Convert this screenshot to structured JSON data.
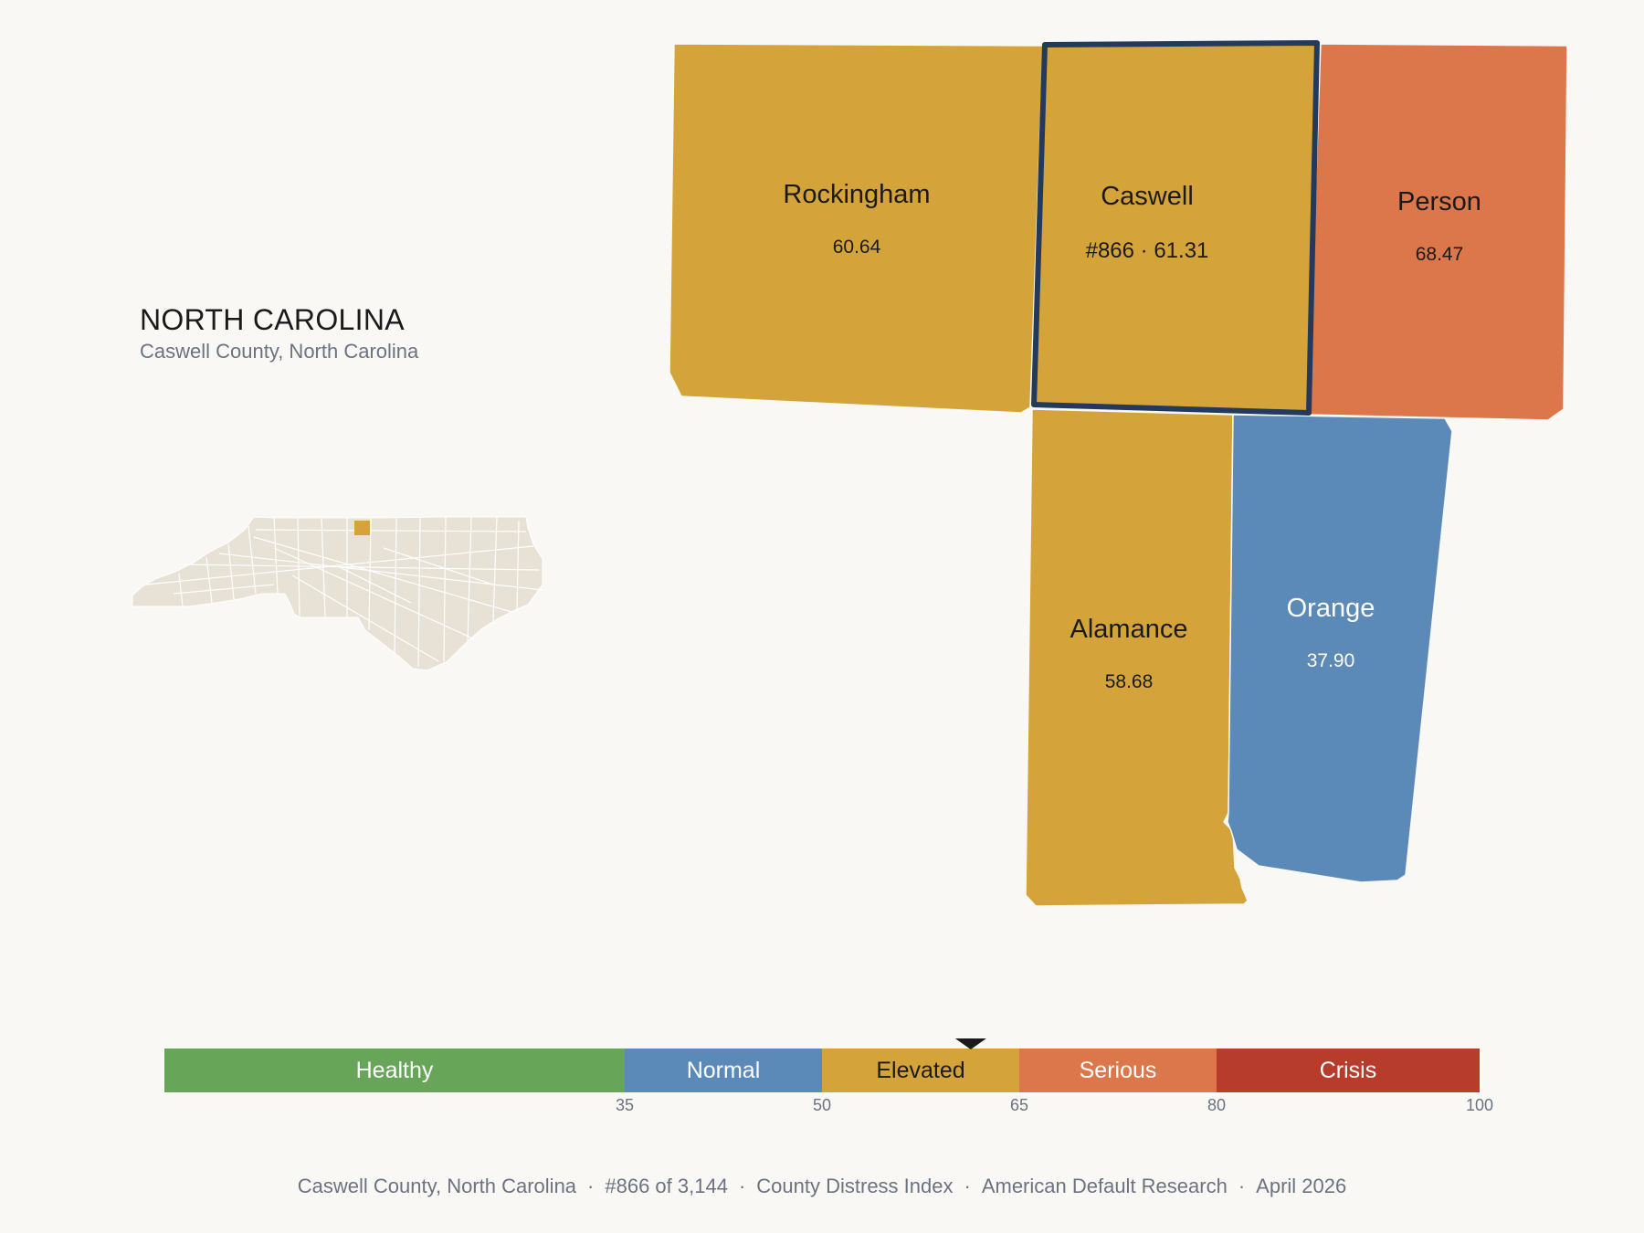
{
  "header": {
    "state": "NORTH CAROLINA",
    "subtitle": "Caswell County, North Carolina"
  },
  "colors": {
    "background": "#f9f8f5",
    "healthy": "#67a659",
    "normal": "#5b89b8",
    "elevated": "#d4a43a",
    "serious": "#db774a",
    "crisis": "#b83c2c",
    "selected_outline": "#243a5c",
    "inset_fill": "#e7e1d6"
  },
  "counties": [
    {
      "id": "rockingham",
      "name": "Rockingham",
      "value": "60.64",
      "category": "elevated",
      "selected": false
    },
    {
      "id": "caswell",
      "name": "Caswell",
      "value": "#866 · 61.31",
      "category": "elevated",
      "selected": true
    },
    {
      "id": "person",
      "name": "Person",
      "value": "68.47",
      "category": "serious",
      "selected": false
    },
    {
      "id": "alamance",
      "name": "Alamance",
      "value": "58.68",
      "category": "elevated",
      "selected": false
    },
    {
      "id": "orange",
      "name": "Orange",
      "value": "37.90",
      "category": "normal",
      "selected": false
    }
  ],
  "scale": {
    "min": 0,
    "max": 100,
    "marker_value": 61.31,
    "bands": [
      {
        "label": "Healthy",
        "from": 0,
        "to": 35,
        "color": "#67a659"
      },
      {
        "label": "Normal",
        "from": 35,
        "to": 50,
        "color": "#5b89b8"
      },
      {
        "label": "Elevated",
        "from": 50,
        "to": 65,
        "color": "#d4a43a"
      },
      {
        "label": "Serious",
        "from": 65,
        "to": 80,
        "color": "#db774a"
      },
      {
        "label": "Crisis",
        "from": 80,
        "to": 100,
        "color": "#b83c2c"
      }
    ],
    "ticks": [
      "35",
      "50",
      "65",
      "80",
      "100"
    ]
  },
  "footer": {
    "county": "Caswell County, North Carolina",
    "rank": "#866 of 3,144",
    "index": "County Distress Index",
    "source": "American Default Research",
    "date": "April 2026",
    "separator": "·"
  }
}
